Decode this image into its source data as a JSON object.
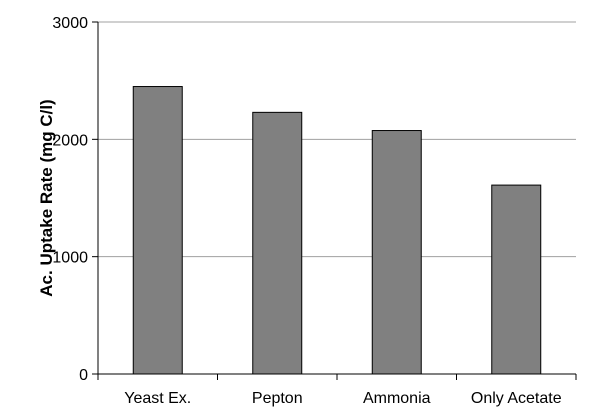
{
  "chart_data": {
    "type": "bar",
    "title": "",
    "xlabel": "",
    "ylabel": "Ac. Uptake Rate (mg C/l)",
    "categories": [
      "Yeast Ex.",
      "Pepton",
      "Ammonia",
      "Only Acetate"
    ],
    "values": [
      2450,
      2230,
      2075,
      1610
    ],
    "ylim": [
      0,
      3000
    ],
    "yticks": [
      0,
      1000,
      2000,
      3000
    ],
    "grid": true,
    "bar_color": "#808080",
    "bar_edge_color": "#000000",
    "grid_color": "#a0a0a0"
  }
}
